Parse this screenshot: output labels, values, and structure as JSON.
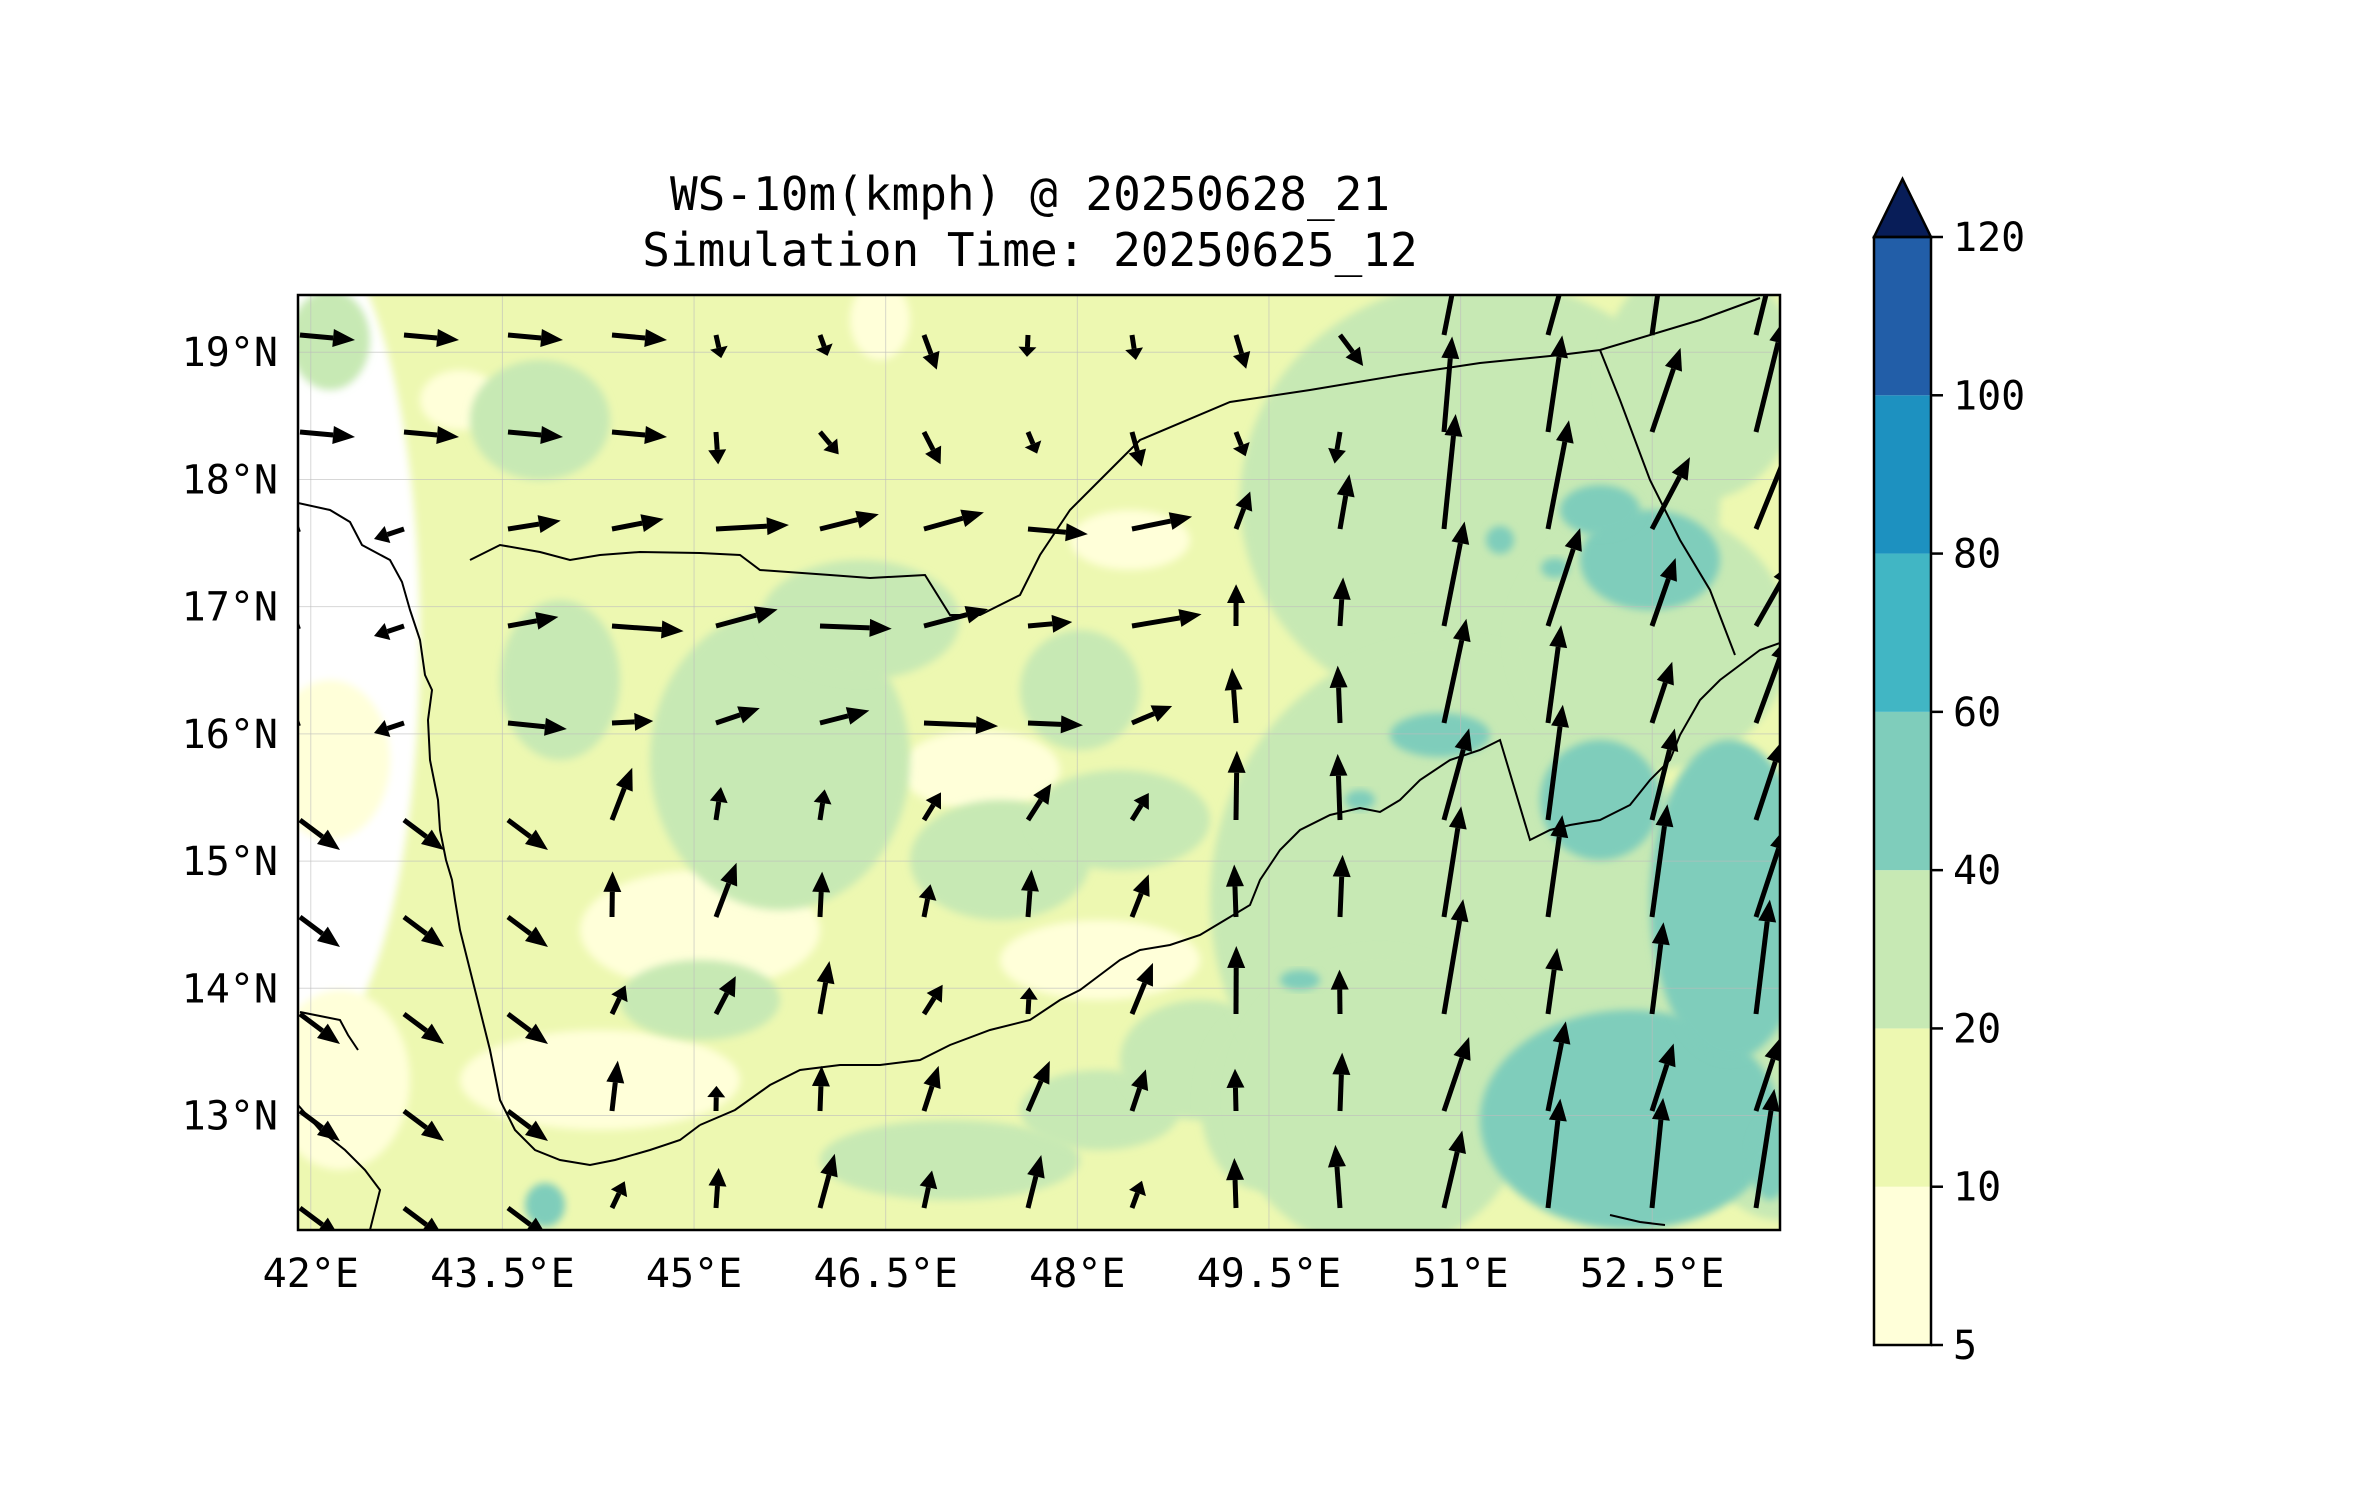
{
  "title": {
    "line1": "WS-10m(kmph) @ 20250628_21",
    "line2": "Simulation Time: 20250625_12"
  },
  "map": {
    "lon_range": [
      41.9,
      53.5
    ],
    "lat_range": [
      12.1,
      19.45
    ],
    "x_ticks": [
      {
        "value": 42,
        "label": "42°E"
      },
      {
        "value": 43.5,
        "label": "43.5°E"
      },
      {
        "value": 45,
        "label": "45°E"
      },
      {
        "value": 46.5,
        "label": "46.5°E"
      },
      {
        "value": 48,
        "label": "48°E"
      },
      {
        "value": 49.5,
        "label": "49.5°E"
      },
      {
        "value": 51,
        "label": "51°E"
      },
      {
        "value": 52.5,
        "label": "52.5°E"
      }
    ],
    "y_ticks": [
      {
        "value": 13,
        "label": "13°N"
      },
      {
        "value": 14,
        "label": "14°N"
      },
      {
        "value": 15,
        "label": "15°N"
      },
      {
        "value": 16,
        "label": "16°N"
      },
      {
        "value": 17,
        "label": "17°N"
      },
      {
        "value": 18,
        "label": "18°N"
      },
      {
        "value": 19,
        "label": "19°N"
      }
    ],
    "gridlines": true
  },
  "colorbar": {
    "levels": [
      5,
      10,
      20,
      40,
      60,
      80,
      100,
      120
    ],
    "colors": [
      "#ffffd9",
      "#edf8b1",
      "#c7e9b4",
      "#7fcdbb",
      "#41b6c4",
      "#1d91c0",
      "#225ea8",
      "#0c2c84"
    ],
    "extend_color": "#081d58",
    "labels": [
      "5",
      "10",
      "20",
      "40",
      "60",
      "80",
      "100",
      "120"
    ]
  },
  "colors": {
    "land_base": "#edf8b1",
    "coastline": "#000000",
    "arrow": "#000000"
  }
}
